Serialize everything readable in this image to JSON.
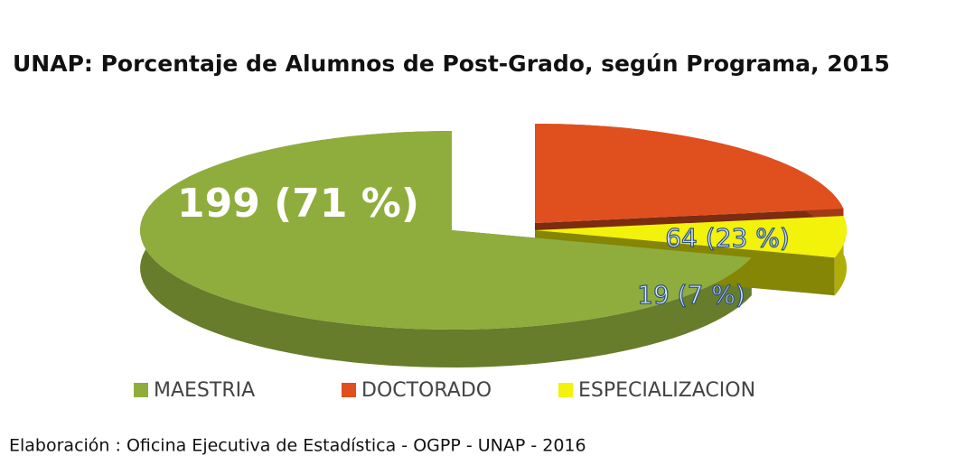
{
  "chart_data": {
    "type": "pie",
    "title": "UNAP: Porcentaje de Alumnos de Post-Grado, según Programa, 2015",
    "categories": [
      "MAESTRIA",
      "DOCTORADO",
      "ESPECIALIZACION"
    ],
    "values": [
      199,
      64,
      19
    ],
    "value_labels": [
      "199  (71 %)",
      "64  (23 %)",
      "19  (7 %)"
    ],
    "colors": [
      "#8fad3c",
      "#e0501e",
      "#f2f20a"
    ],
    "legend": "bottom",
    "source": "Elaboración : Oficina Ejecutiva de Estadística - OGPP - UNAP - 2016"
  }
}
